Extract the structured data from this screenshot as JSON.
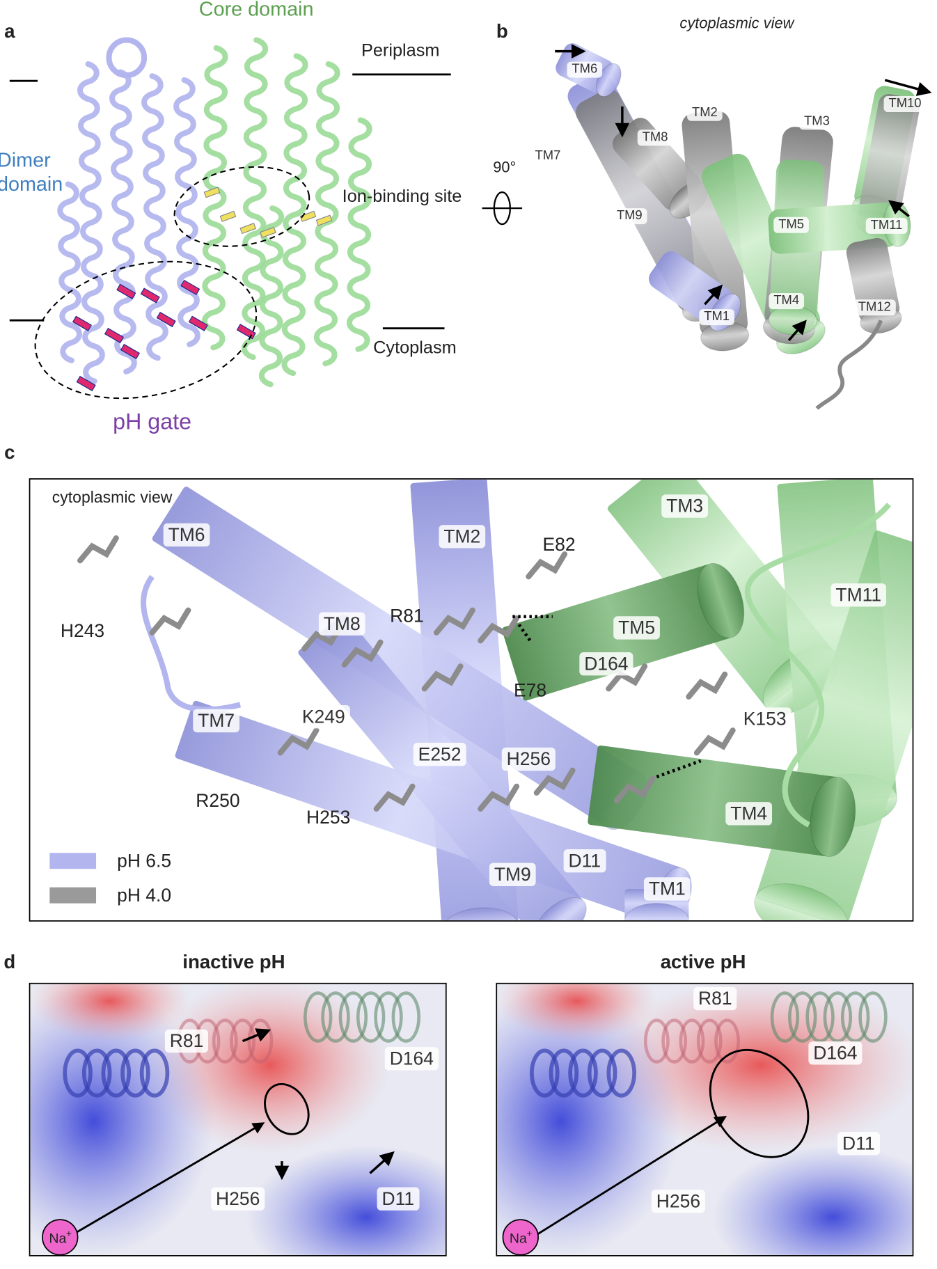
{
  "panel_a": {
    "label": "a",
    "core_domain": "Core domain",
    "dimer_domain": "Dimer domain",
    "periplasm": "Periplasm",
    "ion_binding_site": "Ion-binding site",
    "cytoplasm": "Cytoplasm",
    "ph_gate": "pH gate"
  },
  "panel_b": {
    "label": "b",
    "view": "cytoplasmic view",
    "rotation": "90°",
    "tm_labels": [
      "TM6",
      "TM8",
      "TM7",
      "TM2",
      "TM3",
      "TM10",
      "TM9",
      "TM5",
      "TM11",
      "TM4",
      "TM1",
      "TM12"
    ]
  },
  "panel_c": {
    "label": "c",
    "view": "cytoplasmic view",
    "labels": [
      "TM6",
      "H243",
      "TM8",
      "TM2",
      "E82",
      "R81",
      "TM5",
      "TM3",
      "TM11",
      "D164",
      "E78",
      "K249",
      "TM7",
      "K153",
      "E252",
      "H256",
      "R250",
      "H253",
      "TM4",
      "TM9",
      "D11",
      "TM1"
    ],
    "legend": [
      {
        "name": "pH 6.5",
        "color": "#b3b6ee"
      },
      {
        "name": "pH 4.0",
        "color": "#9a9a9a"
      }
    ]
  },
  "panel_d": {
    "label": "d",
    "panels": [
      {
        "title": "inactive pH",
        "labels": [
          "R81",
          "D164",
          "H256",
          "D11"
        ],
        "ion": {
          "text": "Na",
          "sup": "+"
        }
      },
      {
        "title": "active pH",
        "labels": [
          "R81",
          "D164",
          "D11",
          "H256"
        ],
        "ion": {
          "text": "Na",
          "sup": "+"
        }
      }
    ]
  }
}
